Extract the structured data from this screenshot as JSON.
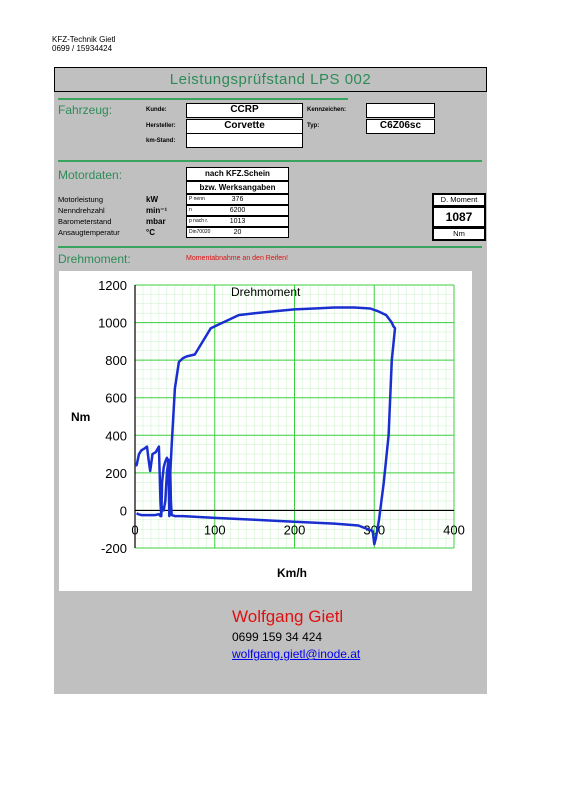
{
  "header": {
    "company": "KFZ-Technik Gietl",
    "phone": "0699 / 15934424"
  },
  "title": "Leistungsprüfstand LPS 002",
  "vehicle": {
    "section": "Fahrzeug:",
    "kunde_label": "Kunde:",
    "kunde_value": "CCRP",
    "hersteller_label": "Hersteller:",
    "hersteller_value": "Corvette",
    "kmstand_label": "km-Stand:",
    "kmstand_value": "",
    "kennzeichen_label": "Kennzeichen:",
    "kennzeichen_value": "",
    "typ_label": "Typ:",
    "typ_value": "C6Z06sc"
  },
  "engine": {
    "section": "Motordaten:",
    "source_line1": "nach KFZ.Schein",
    "source_line2": "bzw. Werksangaben",
    "rows": [
      {
        "label": "Motorleistung",
        "unit": "kW",
        "key": "P nenn",
        "value": "376"
      },
      {
        "label": "Nenndrehzahl",
        "unit": "min⁻¹",
        "key": "n",
        "value": "6200"
      },
      {
        "label": "Barometerstand",
        "unit": "mbar",
        "key": "p nach r.",
        "value": "1013"
      },
      {
        "label": "Ansaugtemperatur",
        "unit": "°C",
        "key": "Din70020",
        "value": "20"
      }
    ],
    "moment_title": "D. Moment",
    "moment_value": "1087",
    "moment_unit": "Nm"
  },
  "torque": {
    "section": "Drehmoment:",
    "note": "Momentabnahme an den Reifen!"
  },
  "chart_data": {
    "type": "line",
    "title": "Drehmoment",
    "xlabel": "Km/h",
    "ylabel": "Nm",
    "xlim": [
      0,
      400
    ],
    "ylim": [
      -200,
      1200
    ],
    "x_ticks": [
      0,
      100,
      200,
      300,
      400
    ],
    "y_ticks": [
      -200,
      0,
      200,
      400,
      600,
      800,
      1000,
      1200
    ],
    "grid": true,
    "line_color": "#1a2fd0",
    "series": [
      {
        "x": [
          0,
          2,
          5,
          8,
          12,
          15,
          17,
          19,
          22,
          26,
          30,
          32,
          33,
          34,
          36,
          38,
          40,
          42,
          43,
          44,
          46,
          48,
          50,
          55,
          60,
          65,
          75,
          85,
          95,
          110,
          130,
          150,
          175,
          200,
          225,
          250,
          275,
          295,
          305,
          315,
          322,
          324,
          326,
          322,
          318,
          312,
          306,
          302,
          300,
          298,
          280,
          250,
          200,
          150,
          100,
          60,
          50,
          46,
          45,
          44,
          42,
          40,
          38,
          36,
          34,
          33,
          32,
          30,
          25,
          15,
          8,
          4,
          2
        ],
        "y": [
          240,
          240,
          300,
          320,
          330,
          340,
          270,
          210,
          300,
          310,
          340,
          40,
          -30,
          150,
          230,
          260,
          280,
          250,
          -30,
          180,
          350,
          500,
          650,
          790,
          810,
          820,
          830,
          900,
          970,
          1000,
          1040,
          1050,
          1060,
          1070,
          1075,
          1080,
          1080,
          1075,
          1060,
          1040,
          1000,
          980,
          970,
          800,
          400,
          150,
          -50,
          -150,
          -180,
          -110,
          -80,
          -70,
          -60,
          -50,
          -40,
          -30,
          -30,
          -25,
          50,
          250,
          270,
          200,
          50,
          0,
          20,
          -20,
          -30,
          -20,
          -25,
          -25,
          -25,
          -20,
          -15
        ]
      }
    ]
  },
  "contact": {
    "name": "Wolfgang Gietl",
    "phone": "0699 159 34 424",
    "email": "wolfgang.gietl@inode.at"
  }
}
